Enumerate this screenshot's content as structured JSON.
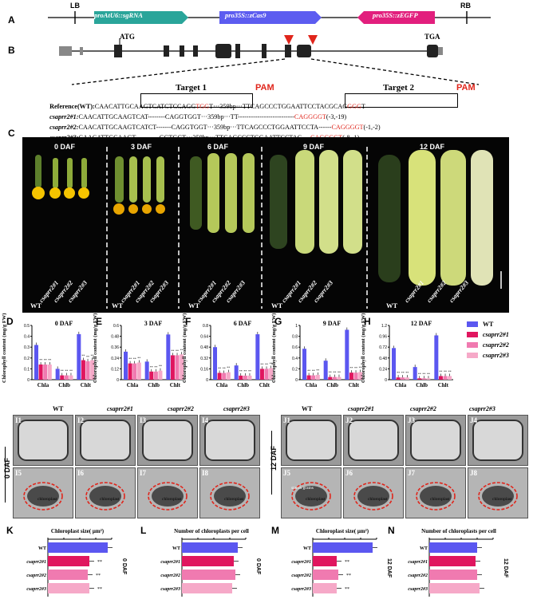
{
  "panelA": {
    "label": "A",
    "lb": "LB",
    "rb": "RB",
    "seg1": "proAtU6::sgRNA",
    "seg2": "pro35S::zCas9",
    "seg3": "pro35S::zEGFP",
    "colors": {
      "seg1": "#2aa59a",
      "seg2": "#5c5cf0",
      "seg3": "#e21f7d"
    }
  },
  "panelB": {
    "label": "B",
    "atg": "ATG",
    "tga": "TGA"
  },
  "targets": {
    "t1": "Target 1",
    "t2": "Target 2",
    "pam": "PAM",
    "rows": [
      {
        "name": "Reference(WT):",
        "a": "CAAC",
        "b": "ATTGCAAGTCATCTCCAGG",
        "c": "TGG",
        "d": "T···359bp···TTCAG",
        "e": "CCCTGGAATTCCTACGCAG",
        "f": "GGG",
        "g": "T",
        "italic": false
      },
      {
        "name": "csaprr2#1:",
        "a": "CAACATTGCAAGTCAT--------",
        "b": "",
        "c": "CAGGTGG",
        "d": "T···359bp···TT--------------------------",
        "e": "",
        "f": "CAGGGGT",
        "g": "(-3,-19)",
        "italic": true
      },
      {
        "name": "csaprr2#2:",
        "a": "CAACATTGCAAGTCATCT-------",
        "b": "",
        "c": "CAGGTGG",
        "d": "T···359bp···TTCAGCCCTGGAATTCCTA------",
        "e": "",
        "f": "CAGGGGT",
        "g": "(-1,-2)",
        "italic": true
      },
      {
        "name": "csaprr2#3:",
        "a": "CAACATTGCAAGT-----------",
        "b": "",
        "c": "GGTGG",
        "d": "T···359bp···TTCAGCCCTGGAATTCCTAC----",
        "e": "",
        "f": "CAGGGGT",
        "g": "(-8,-1)",
        "italic": true
      }
    ]
  },
  "panelC": {
    "label": "C",
    "days": [
      "0 DAF",
      "3 DAF",
      "6 DAF",
      "9 DAF",
      "12 DAF"
    ],
    "genotypes": [
      "WT",
      "csaprr2#1",
      "csaprr2#2",
      "csaprr2#3"
    ]
  },
  "chart_data": [
    {
      "panel": "D",
      "type": "bar",
      "title": "0 DAF",
      "ylabel": "Chlorophyll content (mg/g FW)",
      "categories": [
        "Chla",
        "Chlb",
        "Chlt"
      ],
      "ylim": [
        0,
        0.5
      ],
      "series": [
        {
          "name": "WT",
          "values": [
            0.32,
            0.1,
            0.42
          ]
        },
        {
          "name": "csaprr2#1",
          "values": [
            0.14,
            0.04,
            0.18
          ]
        },
        {
          "name": "csaprr2#2",
          "values": [
            0.14,
            0.04,
            0.17
          ]
        },
        {
          "name": "csaprr2#3",
          "values": [
            0.14,
            0.04,
            0.18
          ]
        }
      ]
    },
    {
      "panel": "E",
      "type": "bar",
      "title": "3 DAF",
      "categories": [
        "Chla",
        "Chlb",
        "Chlt"
      ],
      "ylim": [
        0,
        0.6
      ],
      "series": [
        {
          "name": "WT",
          "values": [
            0.31,
            0.2,
            0.5
          ]
        },
        {
          "name": "csaprr2#1",
          "values": [
            0.18,
            0.09,
            0.27
          ]
        },
        {
          "name": "csaprr2#2",
          "values": [
            0.18,
            0.09,
            0.27
          ]
        },
        {
          "name": "csaprr2#3",
          "values": [
            0.19,
            0.1,
            0.28
          ]
        }
      ]
    },
    {
      "panel": "F",
      "type": "bar",
      "title": "6 DAF",
      "categories": [
        "Chla",
        "Chlb",
        "Chlt"
      ],
      "ylim": [
        0,
        0.8
      ],
      "series": [
        {
          "name": "WT",
          "values": [
            0.48,
            0.21,
            0.67
          ]
        },
        {
          "name": "csaprr2#1",
          "values": [
            0.1,
            0.06,
            0.16
          ]
        },
        {
          "name": "csaprr2#2",
          "values": [
            0.1,
            0.06,
            0.16
          ]
        },
        {
          "name": "csaprr2#3",
          "values": [
            0.11,
            0.06,
            0.17
          ]
        }
      ]
    },
    {
      "panel": "G",
      "type": "bar",
      "title": "9 DAF",
      "categories": [
        "Chla",
        "Chlb",
        "Chlt"
      ],
      "ylim": [
        0,
        1.0
      ],
      "series": [
        {
          "name": "WT",
          "values": [
            0.57,
            0.35,
            0.92
          ]
        },
        {
          "name": "csaprr2#1",
          "values": [
            0.08,
            0.05,
            0.13
          ]
        },
        {
          "name": "csaprr2#2",
          "values": [
            0.08,
            0.05,
            0.13
          ]
        },
        {
          "name": "csaprr2#3",
          "values": [
            0.09,
            0.05,
            0.14
          ]
        }
      ]
    },
    {
      "panel": "H",
      "type": "bar",
      "title": "12 DAF",
      "categories": [
        "Chla",
        "Chlb",
        "Chlt"
      ],
      "ylim": [
        0,
        1.2
      ],
      "series": [
        {
          "name": "WT",
          "values": [
            0.7,
            0.28,
            0.98
          ]
        },
        {
          "name": "csaprr2#1",
          "values": [
            0.05,
            0.03,
            0.08
          ]
        },
        {
          "name": "csaprr2#2",
          "values": [
            0.05,
            0.03,
            0.08
          ]
        },
        {
          "name": "csaprr2#3",
          "values": [
            0.05,
            0.03,
            0.08
          ]
        }
      ]
    },
    {
      "panel": "K",
      "type": "bar",
      "title": "Chloroplast size( μm²)",
      "categories": [
        "WT",
        "csaprr2#1",
        "csaprr2#2",
        "csaprr2#3"
      ],
      "values": [
        7.5,
        5.2,
        5.0,
        5.2
      ],
      "ylim": [
        0,
        8
      ],
      "side_label": "0 DAF"
    },
    {
      "panel": "L",
      "type": "bar",
      "title": "Number of chloroplasts per cell",
      "categories": [
        "WT",
        "csaprr2#1",
        "csaprr2#2",
        "csaprr2#3"
      ],
      "values": [
        7,
        6.5,
        6.7,
        6.3
      ],
      "ylim": [
        0,
        8
      ],
      "side_label": "0 DAF"
    },
    {
      "panel": "M",
      "type": "bar",
      "title": "Chloroplast size( μm²)",
      "categories": [
        "WT",
        "csaprr2#1",
        "csaprr2#2",
        "csaprr2#3"
      ],
      "values": [
        7.5,
        3.0,
        3.2,
        3.0
      ],
      "ylim": [
        0,
        8
      ],
      "side_label": "12 DAF"
    },
    {
      "panel": "N",
      "type": "bar",
      "title": "Number of chloroplasts per cell",
      "categories": [
        "WT",
        "csaprr2#1",
        "csaprr2#2",
        "csaprr2#3"
      ],
      "values": [
        6,
        5.8,
        6,
        6.3
      ],
      "ylim": [
        0,
        8
      ],
      "side_label": "12 DAF"
    }
  ],
  "legend": {
    "items": [
      "WT",
      "csaprr2#1",
      "csaprr2#2",
      "csaprr2#3"
    ],
    "colors": [
      "#5b57f0",
      "#e0165f",
      "#f07ab0",
      "#f6a9c8"
    ]
  },
  "em": {
    "headers_left": [
      "WT",
      "csaprr2#1",
      "csaprr2#2",
      "csaprr2#3"
    ],
    "headers_right": [
      "WT",
      "csaprr2#1",
      "csaprr2#2",
      "csaprr2#3"
    ],
    "panels_left_top": [
      "I1",
      "I2",
      "I3",
      "I4"
    ],
    "panels_left_bot": [
      "I5",
      "I6",
      "I7",
      "I8"
    ],
    "panels_right_top": [
      "J1",
      "J2",
      "J3",
      "J4"
    ],
    "panels_right_bot": [
      "J5",
      "J6",
      "J7",
      "J8"
    ],
    "side_left": "0 DAF",
    "side_right": "12 DAF",
    "chloroplast": "chloroplast",
    "starch": "starch grains",
    "sig": "**"
  },
  "bottom_labels": [
    "K",
    "L",
    "M",
    "N"
  ]
}
